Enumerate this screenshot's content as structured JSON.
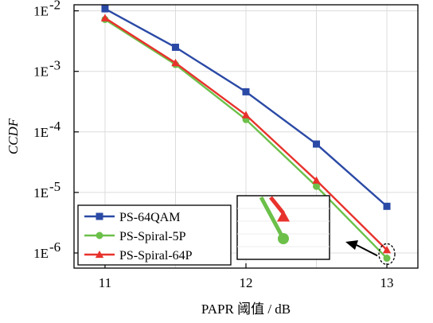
{
  "chart_data": {
    "type": "line",
    "xlabel": "PAPR 阈值 / dB",
    "ylabel": "CCDF",
    "x": [
      11,
      11.5,
      12,
      12.5,
      13
    ],
    "xlim": [
      10.78,
      13.22
    ],
    "ylim_log10": [
      -6.25,
      -1.9
    ],
    "yscale": "log",
    "grid": true,
    "legend_position": "bottom-left",
    "x_ticks": [
      {
        "value": 11,
        "label": "11"
      },
      {
        "value": 12,
        "label": "12"
      },
      {
        "value": 13,
        "label": "13"
      }
    ],
    "y_ticks": [
      {
        "exp": -2,
        "label": "1E",
        "sup": "-2"
      },
      {
        "exp": -3,
        "label": "1E",
        "sup": "-3"
      },
      {
        "exp": -4,
        "label": "1E",
        "sup": "-4"
      },
      {
        "exp": -5,
        "label": "1E",
        "sup": "-5"
      },
      {
        "exp": -6,
        "label": "1E",
        "sup": "-6"
      }
    ],
    "series": [
      {
        "name": "PS-64QAM",
        "color": "#2b4aa6",
        "marker": "square",
        "values": [
          0.0108,
          0.0025,
          0.00046,
          6.3e-05,
          5.9e-06
        ]
      },
      {
        "name": "PS-Spiral-5P",
        "color": "#6cc04a",
        "marker": "circle",
        "values": [
          0.0072,
          0.0013,
          0.00016,
          1.26e-05,
          8.2e-07
        ]
      },
      {
        "name": "PS-Spiral-64P",
        "color": "#e8322c",
        "marker": "triangle",
        "values": [
          0.0076,
          0.00138,
          0.00019,
          1.58e-05,
          1.12e-06
        ]
      }
    ],
    "annotation": {
      "type": "zoom-inset",
      "target_x": 13,
      "target_values": [
        8.2e-07,
        1.12e-06
      ],
      "arrow": true
    }
  }
}
